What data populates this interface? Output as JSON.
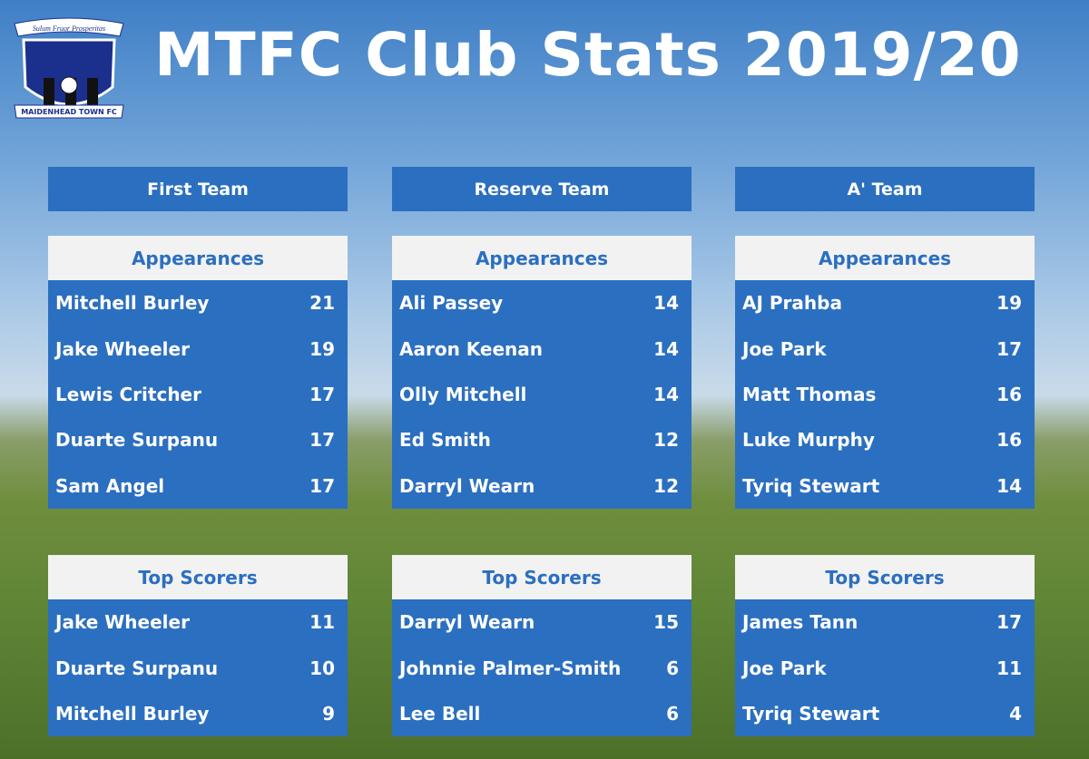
{
  "header": {
    "title": "MTFC Club Stats 2019/20",
    "badge_motto": "Sulum Fruor Prosperitas",
    "badge_name": "MAIDENHEAD TOWN FC"
  },
  "teams": [
    {
      "name": "First Team",
      "appearances": {
        "title": "Appearances",
        "rows": [
          [
            "Mitchell Burley",
            21
          ],
          [
            "Jake Wheeler",
            19
          ],
          [
            "Lewis Critcher",
            17
          ],
          [
            "Duarte Surpanu",
            17
          ],
          [
            "Sam Angel",
            17
          ]
        ]
      },
      "scorers": {
        "title": "Top Scorers",
        "rows": [
          [
            "Jake Wheeler",
            11
          ],
          [
            "Duarte Surpanu",
            10
          ],
          [
            "Mitchell Burley",
            9
          ]
        ]
      }
    },
    {
      "name": "Reserve Team",
      "appearances": {
        "title": "Appearances",
        "rows": [
          [
            "Ali Passey",
            14
          ],
          [
            "Aaron Keenan",
            14
          ],
          [
            "Olly Mitchell",
            14
          ],
          [
            "Ed Smith",
            12
          ],
          [
            "Darryl Wearn",
            12
          ]
        ]
      },
      "scorers": {
        "title": "Top Scorers",
        "rows": [
          [
            "Darryl Wearn",
            15
          ],
          [
            "Johnnie Palmer-Smith",
            6
          ],
          [
            "Lee Bell",
            6
          ]
        ]
      }
    },
    {
      "name": "A' Team",
      "appearances": {
        "title": "Appearances",
        "rows": [
          [
            "AJ Prahba",
            19
          ],
          [
            "Joe Park",
            17
          ],
          [
            "Matt Thomas",
            16
          ],
          [
            "Luke Murphy",
            16
          ],
          [
            "Tyriq Stewart",
            14
          ]
        ]
      },
      "scorers": {
        "title": "Top Scorers",
        "rows": [
          [
            "James Tann",
            17
          ],
          [
            "Joe Park",
            11
          ],
          [
            "Tyriq Stewart",
            4
          ]
        ]
      }
    }
  ]
}
